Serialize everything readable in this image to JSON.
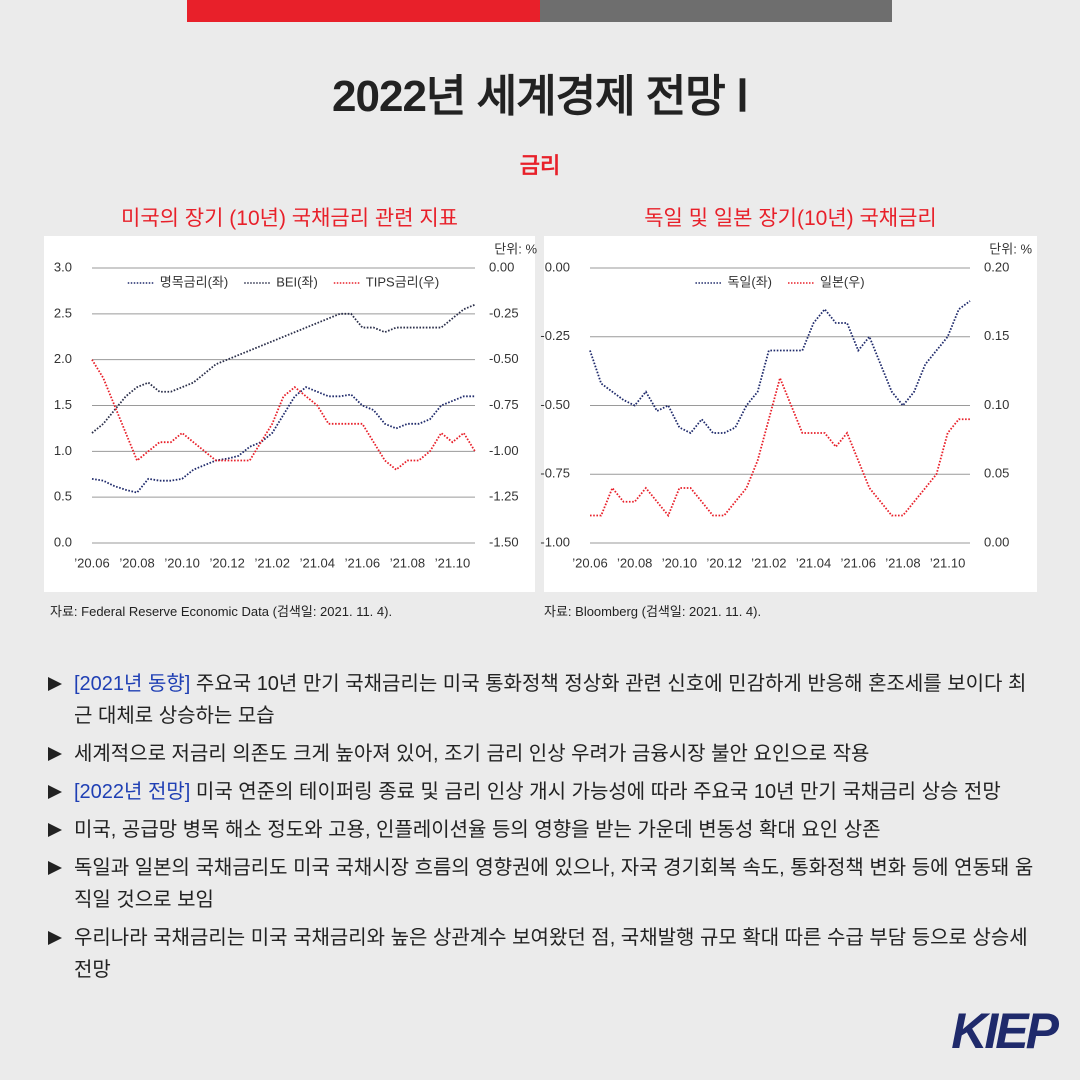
{
  "header": {
    "title": "2022년 세계경제 전망 Ⅰ",
    "section": "금리"
  },
  "chart_data": [
    {
      "type": "line",
      "title": "미국의 장기 (10년) 국채금리 관련 지표",
      "unit": "단위: %",
      "legend": "top",
      "grid": true,
      "categories": [
        "’20.06",
        null,
        null,
        null,
        "’20.08",
        null,
        null,
        null,
        "’20.10",
        null,
        null,
        null,
        "’20.12",
        null,
        null,
        null,
        "’21.02",
        null,
        null,
        null,
        "’21.04",
        null,
        null,
        null,
        "’21.06",
        null,
        null,
        null,
        "’21.08",
        null,
        null,
        null,
        "’21.10",
        null,
        null
      ],
      "ylim": [
        0,
        3
      ],
      "yticks": [
        {
          "value": 0,
          "label": "0.0"
        },
        {
          "value": 0.5,
          "label": "0.5"
        },
        {
          "value": 1,
          "label": "1.0"
        },
        {
          "value": 1.5,
          "label": "1.5"
        },
        {
          "value": 2,
          "label": "2.0"
        },
        {
          "value": 2.5,
          "label": "2.5"
        },
        {
          "value": 3,
          "label": "3.0"
        }
      ],
      "y2lim": [
        -1.5,
        0
      ],
      "y2ticks": [
        {
          "value": -1.5,
          "label": "-1.50"
        },
        {
          "value": -1.25,
          "label": "-1.25"
        },
        {
          "value": -1,
          "label": "-1.00"
        },
        {
          "value": -0.75,
          "label": "-0.75"
        },
        {
          "value": -0.5,
          "label": "-0.50"
        },
        {
          "value": -0.25,
          "label": "-0.25"
        },
        {
          "value": 0,
          "label": "0.00"
        }
      ],
      "series": [
        {
          "name": "명목금리(좌)",
          "color": "#1f2a6b",
          "values": [
            0.7,
            0.68,
            0.62,
            0.58,
            0.55,
            0.7,
            0.68,
            0.68,
            0.7,
            0.8,
            0.85,
            0.9,
            0.92,
            0.95,
            1.05,
            1.1,
            1.2,
            1.4,
            1.6,
            1.7,
            1.65,
            1.6,
            1.6,
            1.62,
            1.5,
            1.45,
            1.3,
            1.25,
            1.3,
            1.3,
            1.35,
            1.5,
            1.55,
            1.6,
            1.6
          ]
        },
        {
          "name": "BEI(좌)",
          "color": "#2b2f4a",
          "values": [
            1.2,
            1.3,
            1.45,
            1.6,
            1.7,
            1.75,
            1.65,
            1.65,
            1.7,
            1.75,
            1.85,
            1.95,
            2.0,
            2.05,
            2.1,
            2.15,
            2.2,
            2.25,
            2.3,
            2.35,
            2.4,
            2.45,
            2.5,
            2.5,
            2.35,
            2.35,
            2.3,
            2.35,
            2.35,
            2.35,
            2.35,
            2.35,
            2.45,
            2.55,
            2.6
          ]
        },
        {
          "name": "TIPS금리(우)",
          "color": "#e8202a",
          "axis": "y2",
          "values": [
            -0.5,
            -0.6,
            -0.75,
            -0.9,
            -1.05,
            -1.0,
            -0.95,
            -0.95,
            -0.9,
            -0.95,
            -1.0,
            -1.05,
            -1.05,
            -1.05,
            -1.05,
            -0.95,
            -0.85,
            -0.7,
            -0.65,
            -0.7,
            -0.75,
            -0.85,
            -0.85,
            -0.85,
            -0.85,
            -0.95,
            -1.05,
            -1.1,
            -1.05,
            -1.05,
            -1.0,
            -0.9,
            -0.95,
            -0.9,
            -1.0
          ]
        }
      ]
    },
    {
      "type": "line",
      "title": "독일 및 일본 장기(10년) 국채금리",
      "unit": "단위: %",
      "legend": "top",
      "grid": true,
      "categories": [
        "’20.06",
        null,
        null,
        null,
        "’20.08",
        null,
        null,
        null,
        "’20.10",
        null,
        null,
        null,
        "’20.12",
        null,
        null,
        null,
        "’21.02",
        null,
        null,
        null,
        "’21.04",
        null,
        null,
        null,
        "’21.06",
        null,
        null,
        null,
        "’21.08",
        null,
        null,
        null,
        "’21.10",
        null,
        null
      ],
      "ylim": [
        -1,
        0
      ],
      "yticks": [
        {
          "value": -1,
          "label": "-1.00"
        },
        {
          "value": -0.75,
          "label": "-0.75"
        },
        {
          "value": -0.5,
          "label": "-0.50"
        },
        {
          "value": -0.25,
          "label": "-0.25"
        },
        {
          "value": 0,
          "label": "0.00"
        }
      ],
      "y2lim": [
        0,
        0.2
      ],
      "y2ticks": [
        {
          "value": 0,
          "label": "0.00"
        },
        {
          "value": 0.05,
          "label": "0.05"
        },
        {
          "value": 0.1,
          "label": "0.10"
        },
        {
          "value": 0.15,
          "label": "0.15"
        },
        {
          "value": 0.2,
          "label": "0.20"
        }
      ],
      "series": [
        {
          "name": "독일(좌)",
          "color": "#1f2a6b",
          "values": [
            -0.3,
            -0.42,
            -0.45,
            -0.48,
            -0.5,
            -0.45,
            -0.52,
            -0.5,
            -0.58,
            -0.6,
            -0.55,
            -0.6,
            -0.6,
            -0.58,
            -0.5,
            -0.45,
            -0.3,
            -0.3,
            -0.3,
            -0.3,
            -0.2,
            -0.15,
            -0.2,
            -0.2,
            -0.3,
            -0.25,
            -0.35,
            -0.45,
            -0.5,
            -0.45,
            -0.35,
            -0.3,
            -0.25,
            -0.15,
            -0.12
          ]
        },
        {
          "name": "일본(우)",
          "color": "#e8202a",
          "axis": "y2",
          "values": [
            0.02,
            0.02,
            0.04,
            0.03,
            0.03,
            0.04,
            0.03,
            0.02,
            0.04,
            0.04,
            0.03,
            0.02,
            0.02,
            0.03,
            0.04,
            0.06,
            0.09,
            0.12,
            0.1,
            0.08,
            0.08,
            0.08,
            0.07,
            0.08,
            0.06,
            0.04,
            0.03,
            0.02,
            0.02,
            0.03,
            0.04,
            0.05,
            0.08,
            0.09,
            0.09
          ]
        }
      ]
    }
  ],
  "sources": [
    "자료: Federal Reserve Economic Data (검색일: 2021. 11. 4).",
    "자료: Bloomberg (검색일: 2021. 11. 4)."
  ],
  "bullets": [
    {
      "tag": "[2021년 동향]",
      "text": " 주요국 10년 만기 국채금리는 미국 통화정책 정상화 관련 신호에 민감하게 반응해 혼조세를 보이다 최근 대체로 상승하는 모습"
    },
    {
      "text": "세계적으로 저금리 의존도 크게 높아져 있어, 조기 금리 인상 우려가 금융시장 불안 요인으로 작용"
    },
    {
      "tag": "[2022년 전망]",
      "text": " 미국 연준의 테이퍼링 종료 및 금리 인상 개시 가능성에 따라 주요국 10년 만기 국채금리 상승 전망"
    },
    {
      "text": "미국, 공급망 병목 해소 정도와 고용, 인플레이션율 등의 영향을 받는 가운데 변동성 확대 요인 상존"
    },
    {
      "text": "독일과 일본의 국채금리도 미국 국채시장 흐름의 영향권에 있으나, 자국 경기회복 속도, 통화정책 변화 등에 연동돼 움직일 것으로 보임"
    },
    {
      "text": "우리나라 국채금리는 미국 국채금리와 높은 상관계수 보여왔던 점, 국채발행 규모 확대 따른 수급 부담 등으로 상승세 전망"
    }
  ],
  "logo": "KIEP"
}
